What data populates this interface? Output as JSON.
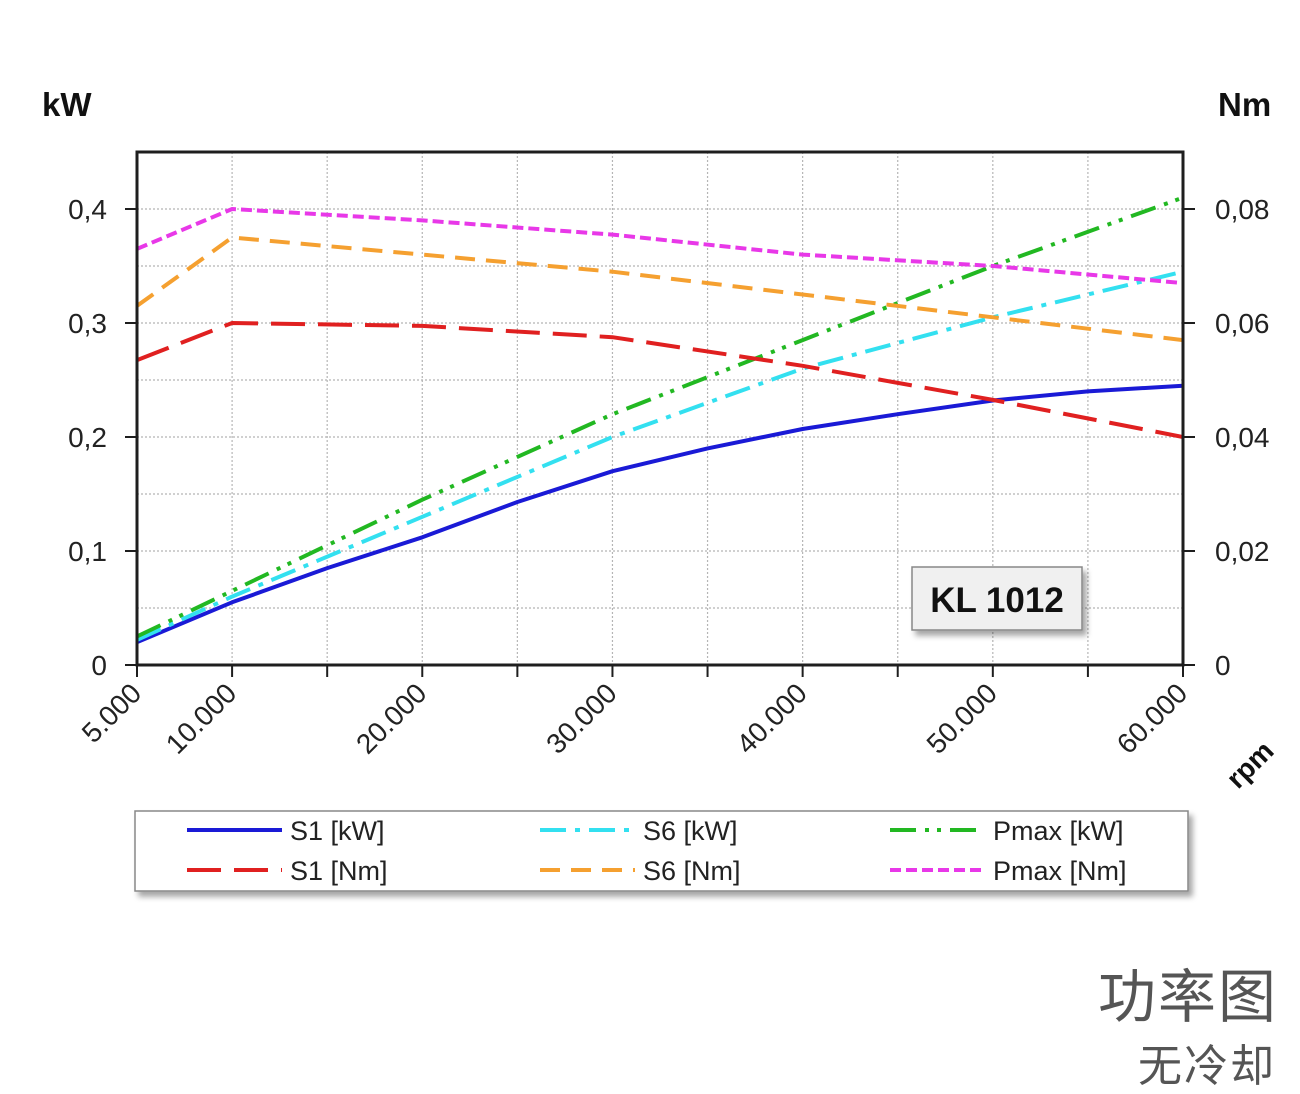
{
  "chart_data": {
    "type": "line",
    "left_axis_unit": "kW",
    "right_axis_unit": "Nm",
    "x_unit": "rpm",
    "x_ticks": [
      5000,
      10000,
      20000,
      30000,
      40000,
      50000,
      60000
    ],
    "x_tick_labels": [
      "5.000",
      "10.000",
      "20.000",
      "30.000",
      "40.000",
      "50.000",
      "60.000"
    ],
    "xlim": [
      5000,
      60000
    ],
    "ylim_left": [
      0,
      0.45
    ],
    "ylim_right": [
      0,
      0.09
    ],
    "y_ticks_left": [
      0,
      0.1,
      0.2,
      0.3,
      0.4
    ],
    "y_tick_labels_left": [
      "0",
      "0,1",
      "0,2",
      "0,3",
      "0,4"
    ],
    "y_ticks_right": [
      0,
      0.02,
      0.04,
      0.06,
      0.08
    ],
    "y_tick_labels_right": [
      "0",
      "0,02",
      "0,04",
      "0,06",
      "0,08"
    ],
    "grid": true,
    "annotation": "KL 1012",
    "legend_position": "bottom",
    "series": [
      {
        "name": "S1 [kW]",
        "axis": "left",
        "color": "#1a1ad6",
        "style": "solid",
        "x": [
          5000,
          10000,
          15000,
          20000,
          25000,
          30000,
          35000,
          40000,
          45000,
          50000,
          55000,
          60000
        ],
        "y": [
          0.02,
          0.055,
          0.085,
          0.112,
          0.143,
          0.17,
          0.19,
          0.207,
          0.22,
          0.232,
          0.24,
          0.245
        ]
      },
      {
        "name": "S6 [kW]",
        "axis": "left",
        "color": "#33e0f0",
        "style": "dashdot",
        "x": [
          5000,
          10000,
          20000,
          30000,
          40000,
          50000,
          60000
        ],
        "y": [
          0.022,
          0.06,
          0.13,
          0.2,
          0.26,
          0.305,
          0.345
        ]
      },
      {
        "name": "Pmax [kW]",
        "axis": "left",
        "color": "#22b822",
        "style": "dashdotdot",
        "x": [
          5000,
          10000,
          20000,
          30000,
          40000,
          50000,
          60000
        ],
        "y": [
          0.025,
          0.065,
          0.145,
          0.22,
          0.285,
          0.35,
          0.41
        ]
      },
      {
        "name": "S1 [Nm]",
        "axis": "right",
        "color": "#e02020",
        "style": "longdash",
        "x": [
          5000,
          10000,
          20000,
          30000,
          40000,
          50000,
          60000
        ],
        "y": [
          0.0535,
          0.06,
          0.0595,
          0.0575,
          0.0525,
          0.0465,
          0.04
        ]
      },
      {
        "name": "S6 [Nm]",
        "axis": "right",
        "color": "#f5a030",
        "style": "dash",
        "x": [
          5000,
          10000,
          20000,
          30000,
          40000,
          50000,
          60000
        ],
        "y": [
          0.063,
          0.075,
          0.072,
          0.069,
          0.065,
          0.061,
          0.057
        ]
      },
      {
        "name": "Pmax [Nm]",
        "axis": "right",
        "color": "#e838e8",
        "style": "shortdash",
        "x": [
          5000,
          10000,
          20000,
          30000,
          40000,
          50000,
          60000
        ],
        "y": [
          0.073,
          0.08,
          0.078,
          0.0755,
          0.072,
          0.07,
          0.067
        ]
      }
    ]
  },
  "footer": {
    "title": "功率图",
    "subtitle": "无冷却"
  }
}
